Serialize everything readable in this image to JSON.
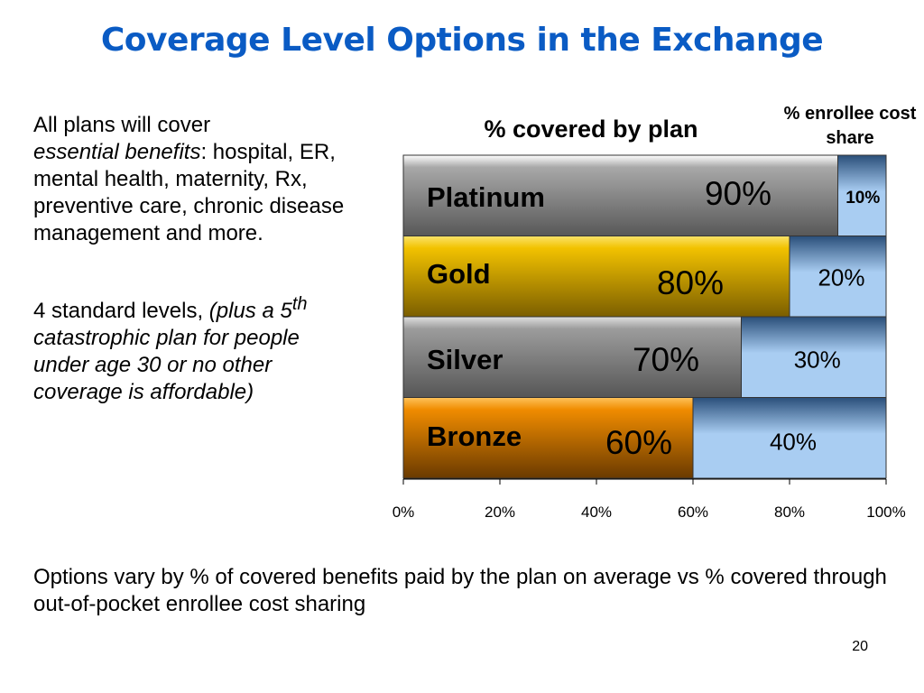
{
  "slide": {
    "title": "Coverage Level Options in the Exchange",
    "page_number": "20"
  },
  "left_text": {
    "para1_start": "All plans will cover",
    "para1_italic": "essential benefits",
    "para1_rest": ": hospital, ER, mental health, maternity, Rx, preventive care, chronic disease management and more.",
    "para2_start": "4 standard levels, ",
    "para2_italic_a": "(plus a 5",
    "para2_sup": "th",
    "para2_italic_b": " catastrophic plan for people under age 30   or no other coverage is affordable)"
  },
  "footer": {
    "text": "Options vary by % of covered benefits paid by the plan on average vs % covered through out-of-pocket enrollee cost sharing"
  },
  "colors": {
    "title": "#0a5bc4",
    "platinum": "#6f6f6f",
    "gold": "#f2c200",
    "silver": "#6f6f6f",
    "bronze": "#f08c00",
    "cost_share": "#a9cdf2"
  },
  "chart_data": {
    "type": "bar",
    "orientation": "horizontal",
    "stacked": true,
    "title": "% covered by plan",
    "cost_share_heading": "% enrollee cost share",
    "categories": [
      "Platinum",
      "Gold",
      "Silver",
      "Bronze"
    ],
    "series": [
      {
        "name": "% covered by plan",
        "values": [
          90,
          80,
          70,
          60
        ],
        "labels": [
          "90%",
          "80%",
          "70%",
          "60%"
        ]
      },
      {
        "name": "% enrollee cost share",
        "values": [
          10,
          20,
          30,
          40
        ],
        "labels": [
          "10%",
          "20%",
          "30%",
          "40%"
        ]
      }
    ],
    "xlim": [
      0,
      100
    ],
    "x_ticks": [
      "0%",
      "20%",
      "40%",
      "60%",
      "80%",
      "100%"
    ],
    "grid": false,
    "legend": "none"
  }
}
